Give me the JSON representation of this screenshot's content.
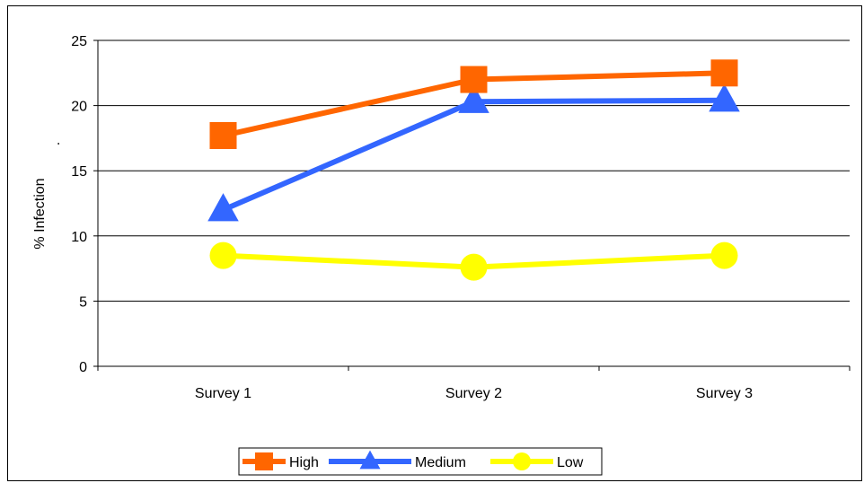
{
  "chart_data": {
    "type": "line",
    "title": "",
    "xlabel": "",
    "ylabel": "% Infection",
    "ylabel_extra": ".",
    "categories": [
      "Survey 1",
      "Survey 2",
      "Survey 3"
    ],
    "ylim": [
      0,
      25
    ],
    "yticks": [
      "0",
      "5",
      "10",
      "15",
      "20",
      "25"
    ],
    "grid": "horizontal",
    "legend_position": "bottom",
    "series": [
      {
        "name": "High",
        "values": [
          17.7,
          22.0,
          22.5
        ],
        "color": "#ff6600",
        "marker": "square"
      },
      {
        "name": "Medium",
        "values": [
          12.0,
          20.3,
          20.4
        ],
        "color": "#3366ff",
        "marker": "triangle"
      },
      {
        "name": "Low",
        "values": [
          8.5,
          7.6,
          8.5
        ],
        "color": "#ffff00",
        "marker": "circle"
      }
    ]
  }
}
